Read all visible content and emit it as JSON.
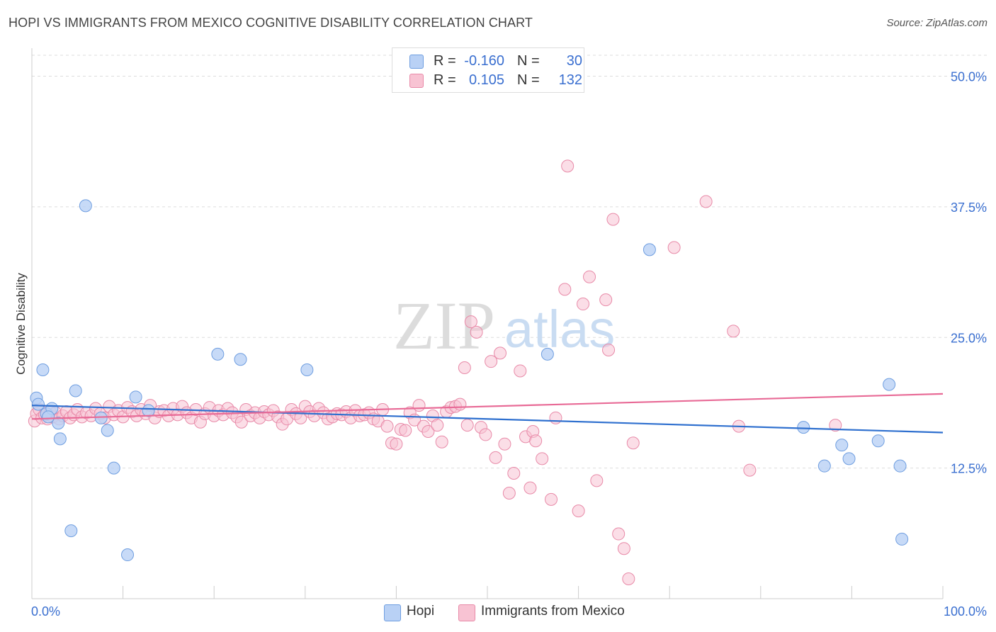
{
  "title": "HOPI VS IMMIGRANTS FROM MEXICO COGNITIVE DISABILITY CORRELATION CHART",
  "source": "Source: ZipAtlas.com",
  "watermark": {
    "zip": "ZIP",
    "atlas": "atlas"
  },
  "legend": {
    "hopi": {
      "r_label": "R =",
      "r_value": "-0.160",
      "n_label": "N =",
      "n_value": "30"
    },
    "mexico": {
      "r_label": "R =",
      "r_value": "0.105",
      "n_label": "N =",
      "n_value": "132"
    }
  },
  "bottom_legend": {
    "hopi": "Hopi",
    "mexico": "Immigrants from Mexico"
  },
  "colors": {
    "hopi_fill": "#b9d1f5",
    "hopi_stroke": "#6f9ee0",
    "hopi_line": "#2f70cf",
    "mexico_fill": "#f8c3d3",
    "mexico_stroke": "#e88aa8",
    "mexico_line": "#e86a96",
    "axis_label": "#3a6fd0",
    "grid": "#dddddd"
  },
  "chart_data": {
    "type": "scatter",
    "title": "HOPI VS IMMIGRANTS FROM MEXICO COGNITIVE DISABILITY CORRELATION CHART",
    "xlabel": "",
    "ylabel": "Cognitive Disability",
    "xlim": [
      0,
      100
    ],
    "ylim": [
      0,
      52
    ],
    "x_tick_labels": [
      "0.0%",
      "100.0%"
    ],
    "y_ticks": [
      12.5,
      25.0,
      37.5,
      50.0
    ],
    "y_tick_labels": [
      "12.5%",
      "25.0%",
      "37.5%",
      "50.0%"
    ],
    "series": [
      {
        "name": "Hopi",
        "r": -0.16,
        "n": 30,
        "trend": {
          "x": [
            0,
            100
          ],
          "y": [
            18.5,
            15.9
          ]
        },
        "points": [
          [
            0.5,
            19.2
          ],
          [
            0.7,
            18.6
          ],
          [
            1.2,
            21.9
          ],
          [
            1.6,
            17.7
          ],
          [
            2.2,
            18.2
          ],
          [
            2.9,
            16.8
          ],
          [
            3.1,
            15.3
          ],
          [
            4.3,
            6.5
          ],
          [
            4.8,
            19.9
          ],
          [
            5.9,
            37.6
          ],
          [
            7.6,
            17.3
          ],
          [
            8.3,
            16.1
          ],
          [
            9.0,
            12.5
          ],
          [
            10.5,
            4.2
          ],
          [
            11.4,
            19.3
          ],
          [
            12.8,
            18.0
          ],
          [
            20.4,
            23.4
          ],
          [
            22.9,
            22.9
          ],
          [
            30.2,
            21.9
          ],
          [
            56.6,
            23.4
          ],
          [
            67.8,
            33.4
          ],
          [
            84.7,
            16.4
          ],
          [
            87.0,
            12.7
          ],
          [
            88.9,
            14.7
          ],
          [
            89.7,
            13.4
          ],
          [
            92.9,
            15.1
          ],
          [
            94.1,
            20.5
          ],
          [
            95.3,
            12.7
          ],
          [
            95.5,
            5.7
          ],
          [
            1.8,
            17.4
          ]
        ]
      },
      {
        "name": "Immigrants from Mexico",
        "r": 0.105,
        "n": 132,
        "trend": {
          "x": [
            0,
            100
          ],
          "y": [
            17.2,
            19.6
          ]
        },
        "points": [
          [
            0.3,
            17.0
          ],
          [
            0.5,
            17.7
          ],
          [
            0.8,
            18.1
          ],
          [
            1.1,
            17.3
          ],
          [
            1.4,
            17.6
          ],
          [
            1.7,
            17.2
          ],
          [
            2.0,
            17.9
          ],
          [
            2.3,
            17.4
          ],
          [
            2.6,
            17.8
          ],
          [
            3.0,
            17.2
          ],
          [
            3.4,
            17.5
          ],
          [
            3.8,
            17.9
          ],
          [
            4.2,
            17.3
          ],
          [
            4.6,
            17.6
          ],
          [
            5.0,
            18.1
          ],
          [
            5.5,
            17.4
          ],
          [
            6.0,
            17.8
          ],
          [
            6.5,
            17.5
          ],
          [
            7.0,
            18.2
          ],
          [
            7.5,
            17.7
          ],
          [
            8.0,
            17.3
          ],
          [
            8.5,
            18.4
          ],
          [
            9.0,
            17.6
          ],
          [
            9.5,
            18.0
          ],
          [
            10.0,
            17.4
          ],
          [
            10.5,
            18.3
          ],
          [
            11.0,
            17.9
          ],
          [
            11.5,
            17.5
          ],
          [
            12.0,
            18.1
          ],
          [
            12.5,
            17.7
          ],
          [
            13.0,
            18.5
          ],
          [
            13.5,
            17.3
          ],
          [
            14.0,
            17.9
          ],
          [
            14.5,
            18.0
          ],
          [
            15.0,
            17.5
          ],
          [
            15.5,
            18.2
          ],
          [
            16.0,
            17.6
          ],
          [
            16.5,
            18.4
          ],
          [
            17.0,
            17.8
          ],
          [
            17.5,
            17.3
          ],
          [
            18.0,
            18.1
          ],
          [
            18.5,
            16.9
          ],
          [
            19.0,
            17.7
          ],
          [
            19.5,
            18.3
          ],
          [
            20.0,
            17.5
          ],
          [
            20.5,
            18.0
          ],
          [
            21.0,
            17.6
          ],
          [
            21.5,
            18.2
          ],
          [
            22.0,
            17.8
          ],
          [
            22.5,
            17.4
          ],
          [
            23.0,
            16.9
          ],
          [
            23.5,
            18.1
          ],
          [
            24.0,
            17.5
          ],
          [
            24.5,
            17.8
          ],
          [
            25.0,
            17.3
          ],
          [
            25.5,
            17.9
          ],
          [
            26.0,
            17.6
          ],
          [
            26.5,
            18.0
          ],
          [
            27.0,
            17.4
          ],
          [
            27.5,
            16.7
          ],
          [
            28.0,
            17.2
          ],
          [
            28.5,
            18.1
          ],
          [
            29.0,
            17.7
          ],
          [
            29.5,
            17.3
          ],
          [
            30.0,
            18.4
          ],
          [
            30.5,
            17.9
          ],
          [
            31.0,
            17.5
          ],
          [
            31.5,
            18.2
          ],
          [
            32.0,
            17.8
          ],
          [
            32.5,
            17.2
          ],
          [
            33.0,
            17.4
          ],
          [
            33.5,
            17.7
          ],
          [
            34.0,
            17.6
          ],
          [
            34.5,
            17.9
          ],
          [
            35.0,
            17.3
          ],
          [
            35.5,
            18.0
          ],
          [
            36.0,
            17.5
          ],
          [
            36.5,
            17.6
          ],
          [
            37.0,
            17.8
          ],
          [
            37.5,
            17.2
          ],
          [
            38.0,
            17.0
          ],
          [
            38.5,
            18.1
          ],
          [
            39.0,
            16.5
          ],
          [
            39.5,
            14.9
          ],
          [
            40.0,
            14.8
          ],
          [
            40.5,
            16.2
          ],
          [
            41.0,
            16.1
          ],
          [
            41.5,
            17.8
          ],
          [
            42.0,
            17.1
          ],
          [
            42.5,
            18.5
          ],
          [
            43.0,
            16.5
          ],
          [
            43.5,
            16.0
          ],
          [
            44.0,
            17.5
          ],
          [
            44.5,
            16.6
          ],
          [
            45.0,
            15.0
          ],
          [
            45.5,
            17.9
          ],
          [
            46.0,
            18.3
          ],
          [
            46.5,
            18.4
          ],
          [
            47.0,
            18.6
          ],
          [
            47.5,
            22.1
          ],
          [
            47.8,
            16.6
          ],
          [
            48.2,
            26.5
          ],
          [
            48.8,
            25.5
          ],
          [
            49.3,
            16.4
          ],
          [
            49.8,
            15.7
          ],
          [
            50.4,
            22.7
          ],
          [
            50.9,
            13.5
          ],
          [
            51.4,
            23.5
          ],
          [
            51.9,
            14.8
          ],
          [
            52.4,
            10.1
          ],
          [
            52.9,
            12.0
          ],
          [
            53.6,
            21.8
          ],
          [
            54.2,
            15.5
          ],
          [
            54.7,
            10.6
          ],
          [
            55.0,
            16.0
          ],
          [
            55.3,
            15.1
          ],
          [
            56.0,
            13.4
          ],
          [
            57.0,
            9.5
          ],
          [
            57.5,
            17.3
          ],
          [
            58.5,
            29.6
          ],
          [
            58.8,
            41.4
          ],
          [
            60.0,
            8.4
          ],
          [
            60.5,
            28.2
          ],
          [
            61.2,
            30.8
          ],
          [
            62.0,
            11.3
          ],
          [
            63.0,
            28.6
          ],
          [
            63.3,
            23.8
          ],
          [
            63.8,
            36.3
          ],
          [
            64.4,
            6.2
          ],
          [
            65.0,
            4.8
          ],
          [
            65.5,
            1.9
          ],
          [
            66.0,
            14.9
          ],
          [
            70.5,
            33.6
          ],
          [
            74.0,
            38.0
          ],
          [
            77.0,
            25.6
          ],
          [
            77.6,
            16.5
          ],
          [
            78.8,
            12.3
          ],
          [
            88.2,
            16.6
          ]
        ]
      }
    ]
  }
}
